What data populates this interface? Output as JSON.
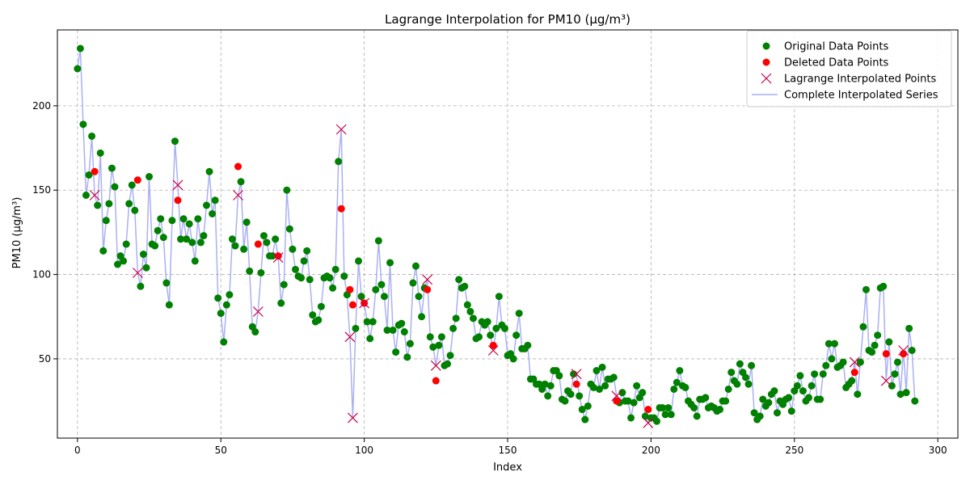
{
  "chart_data": {
    "type": "line",
    "title": "Lagrange Interpolation for PM10 (µg/m³)",
    "xlabel": "Index",
    "ylabel": "PM10 (µg/m³)",
    "xlim": [
      -7,
      307
    ],
    "ylim": [
      3,
      245
    ],
    "x_ticks": [
      0,
      50,
      100,
      150,
      200,
      250,
      300
    ],
    "y_ticks": [
      50,
      100,
      150,
      200
    ],
    "grid": true,
    "legend_position": "top-right",
    "colors": {
      "original": "#008000",
      "deleted": "#ff0000",
      "interpolated": "#cc0044",
      "series": "#aab0f5"
    },
    "legend": [
      {
        "label": "Original Data Points",
        "marker": "circle-green"
      },
      {
        "label": "Deleted Data Points",
        "marker": "circle-red"
      },
      {
        "label": "Lagrange Interpolated Points",
        "marker": "x-crimson"
      },
      {
        "label": "Complete Interpolated Series",
        "marker": "line-blue"
      }
    ],
    "original_x": [
      0,
      1,
      2,
      3,
      4,
      5,
      7,
      8,
      9,
      10,
      11,
      12,
      13,
      14,
      15,
      16,
      17,
      18,
      19,
      20,
      22,
      23,
      24,
      25,
      26,
      27,
      28,
      29,
      30,
      31,
      32,
      33,
      34,
      36,
      37,
      38,
      39,
      40,
      41,
      42,
      43,
      44,
      45,
      46,
      47,
      48,
      49,
      50,
      51,
      52,
      53,
      54,
      55,
      57,
      58,
      59,
      60,
      61,
      62,
      64,
      65,
      66,
      67,
      68,
      69,
      71,
      72,
      73,
      74,
      75,
      76,
      77,
      78,
      79,
      80,
      81,
      82,
      83,
      84,
      85,
      86,
      87,
      88,
      89,
      90,
      91,
      93,
      94,
      97,
      98,
      99,
      101,
      102,
      103,
      104,
      105,
      106,
      107,
      108,
      109,
      110,
      111,
      112,
      113,
      114,
      115,
      116,
      117,
      118,
      119,
      120,
      121,
      123,
      124,
      126,
      127,
      128,
      129,
      130,
      131,
      132,
      133,
      134,
      135,
      136,
      137,
      138,
      139,
      140,
      141,
      142,
      143,
      144,
      146,
      147,
      148,
      149,
      150,
      151,
      152,
      153,
      154,
      155,
      156,
      157,
      158,
      159,
      160,
      161,
      162,
      163,
      164,
      165,
      166,
      167,
      168,
      169,
      170,
      171,
      172,
      173,
      175,
      176,
      177,
      178,
      179,
      180,
      181,
      182,
      183,
      184,
      185,
      186,
      187,
      189,
      190,
      191,
      192,
      193,
      194,
      195,
      196,
      197,
      198,
      200,
      201,
      202,
      203,
      204,
      205,
      206,
      207,
      208,
      209,
      210,
      211,
      212,
      213,
      214,
      215,
      216,
      217,
      218,
      219,
      220,
      221,
      222,
      223,
      224,
      225,
      226,
      227,
      228,
      229,
      230,
      231,
      232,
      233,
      234,
      235,
      236,
      237,
      238,
      239,
      240,
      241,
      242,
      243,
      244,
      245,
      246,
      247,
      248,
      249,
      250,
      251,
      252,
      253,
      254,
      255,
      256,
      257,
      258,
      259,
      260,
      261,
      262,
      263,
      264,
      265,
      266,
      267,
      268,
      269,
      270,
      272,
      273,
      274,
      275,
      276,
      277,
      278,
      279,
      280,
      281,
      283,
      284,
      285,
      286,
      287,
      289,
      290,
      291,
      292
    ],
    "original_y": [
      222,
      234,
      189,
      147,
      159,
      182,
      141,
      172,
      114,
      132,
      142,
      163,
      152,
      106,
      111,
      108,
      118,
      142,
      153,
      138,
      93,
      112,
      104,
      158,
      118,
      117,
      126,
      133,
      122,
      95,
      82,
      132,
      179,
      121,
      133,
      121,
      130,
      119,
      108,
      133,
      119,
      123,
      141,
      161,
      136,
      144,
      86,
      77,
      60,
      82,
      88,
      121,
      117,
      155,
      115,
      131,
      102,
      69,
      66,
      101,
      123,
      119,
      111,
      111,
      121,
      83,
      94,
      150,
      127,
      115,
      103,
      99,
      98,
      108,
      114,
      97,
      76,
      72,
      73,
      81,
      98,
      99,
      98,
      92,
      103,
      167,
      99,
      88,
      68,
      108,
      87,
      72,
      62,
      72,
      91,
      120,
      94,
      87,
      67,
      107,
      67,
      54,
      70,
      71,
      66,
      51,
      59,
      95,
      105,
      87,
      75,
      92,
      63,
      57,
      58,
      63,
      46,
      47,
      52,
      68,
      74,
      97,
      92,
      93,
      82,
      78,
      74,
      62,
      63,
      72,
      70,
      72,
      64,
      68,
      87,
      70,
      68,
      52,
      53,
      50,
      64,
      77,
      56,
      56,
      58,
      38,
      38,
      35,
      35,
      32,
      35,
      28,
      34,
      43,
      43,
      40,
      26,
      25,
      31,
      29,
      41,
      28,
      20,
      14,
      22,
      35,
      33,
      43,
      32,
      45,
      34,
      38,
      38,
      39,
      24,
      30,
      25,
      25,
      15,
      24,
      34,
      27,
      30,
      16,
      15,
      15,
      13,
      21,
      21,
      17,
      21,
      17,
      32,
      36,
      43,
      34,
      33,
      25,
      23,
      21,
      16,
      26,
      26,
      27,
      21,
      22,
      21,
      19,
      20,
      25,
      25,
      32,
      42,
      37,
      35,
      47,
      42,
      39,
      35,
      46,
      18,
      14,
      16,
      26,
      22,
      24,
      29,
      31,
      18,
      25,
      23,
      26,
      27,
      19,
      31,
      34,
      40,
      31,
      25,
      27,
      34,
      41,
      26,
      26,
      41,
      46,
      59,
      50,
      59,
      45,
      46,
      48,
      33,
      35,
      37,
      29,
      48,
      69,
      91,
      55,
      54,
      58,
      64,
      92,
      93,
      60,
      34,
      41,
      48,
      29,
      30,
      68,
      55,
      25,
      24
    ],
    "deleted_x": [
      6,
      21,
      35,
      56,
      63,
      70,
      92,
      95,
      96,
      100,
      122,
      125,
      145,
      174,
      188,
      199,
      271,
      282,
      288
    ],
    "deleted_y": [
      161,
      156,
      144,
      164,
      118,
      111,
      139,
      91,
      82,
      83,
      91,
      37,
      58,
      35,
      25,
      20,
      42,
      53,
      53
    ],
    "interpolated_x": [
      6,
      21,
      35,
      56,
      63,
      70,
      92,
      95,
      96,
      100,
      122,
      125,
      145,
      174,
      188,
      199,
      271,
      282,
      288
    ],
    "interpolated_y": [
      147,
      101,
      153,
      147,
      78,
      110,
      186,
      63,
      15,
      83,
      97,
      46,
      55,
      41,
      28,
      12,
      48,
      37,
      55
    ]
  }
}
